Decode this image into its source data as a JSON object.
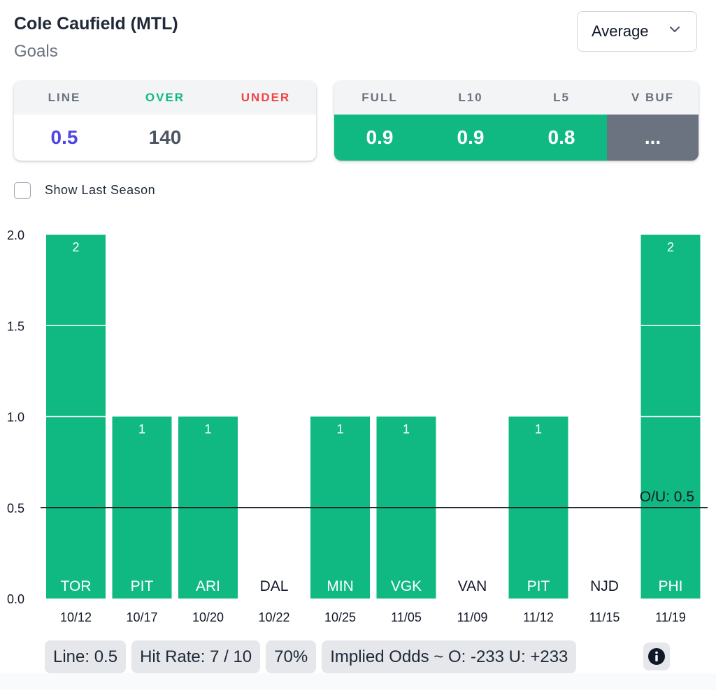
{
  "player": {
    "name": "Cole Caufield (MTL)",
    "stat": "Goals"
  },
  "dropdown": {
    "selected": "Average"
  },
  "line_card": {
    "headers": [
      "LINE",
      "OVER",
      "UNDER"
    ],
    "values": [
      "0.5",
      "140",
      ""
    ],
    "colors": {
      "line": "#4f46e5",
      "over": "#10b981",
      "under": "#ef4444",
      "over_value": "#4b5563"
    }
  },
  "avg_card": {
    "headers": [
      "FULL",
      "L10",
      "L5",
      "V BUF"
    ],
    "values": [
      "0.9",
      "0.9",
      "0.8",
      "..."
    ],
    "colors": {
      "good": "#10b981",
      "neutral": "#6b7280"
    }
  },
  "checkbox": {
    "label": "Show Last Season",
    "checked": false
  },
  "chart_data": {
    "type": "bar",
    "categories": [
      "10/12",
      "10/17",
      "10/20",
      "10/22",
      "10/25",
      "11/05",
      "11/09",
      "11/12",
      "11/15",
      "11/19"
    ],
    "opponents": [
      "TOR",
      "PIT",
      "ARI",
      "DAL",
      "MIN",
      "VGK",
      "VAN",
      "PIT",
      "NJD",
      "PHI"
    ],
    "values": [
      2,
      1,
      1,
      0,
      1,
      1,
      0,
      1,
      0,
      2
    ],
    "y_ticks": [
      "0.0",
      "0.5",
      "1.0",
      "1.5",
      "2.0"
    ],
    "ylim": [
      0,
      2
    ],
    "line_value": 0.5,
    "line_label": "O/U: 0.5",
    "bar_color": "#10b981"
  },
  "summary": {
    "line": "Line: 0.5",
    "hit_rate": "Hit Rate: 7 / 10",
    "percent": "70%",
    "implied_odds": "Implied Odds ~ O: -233 U: +233"
  },
  "icons": {
    "info": "info-icon",
    "dropdown": "chevron-down-icon"
  }
}
